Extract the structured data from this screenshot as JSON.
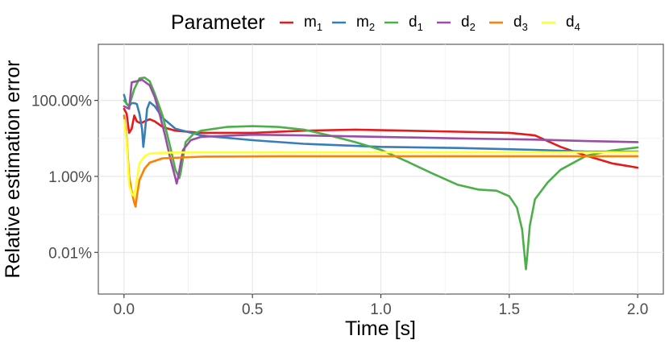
{
  "chart_data": {
    "type": "line",
    "xlabel": "Time [s]",
    "ylabel": "Relative estimation error",
    "yscale": "log10",
    "xlim": [
      -0.1,
      2.1
    ],
    "ylim_percent": [
      0.0008,
      3000
    ],
    "x_ticks": [
      0.0,
      0.5,
      1.0,
      1.5,
      2.0
    ],
    "x_tick_labels": [
      "0.0",
      "0.5",
      "1.0",
      "1.5",
      "2.0"
    ],
    "y_ticks_percent": [
      100,
      1,
      0.01
    ],
    "y_tick_labels": [
      "100.00%",
      "1.00%",
      "0.01%"
    ],
    "grid": true,
    "legend": {
      "title": "Parameter",
      "position": "top",
      "entries": [
        {
          "base": "m",
          "sub": "1"
        },
        {
          "base": "m",
          "sub": "2"
        },
        {
          "base": "d",
          "sub": "1"
        },
        {
          "base": "d",
          "sub": "2"
        },
        {
          "base": "d",
          "sub": "3"
        },
        {
          "base": "d",
          "sub": "4"
        }
      ]
    },
    "series": [
      {
        "name": "m1",
        "color": "#e41a1c",
        "points_percent": [
          [
            0.0,
            60
          ],
          [
            0.01,
            45
          ],
          [
            0.02,
            14
          ],
          [
            0.03,
            18
          ],
          [
            0.04,
            40
          ],
          [
            0.05,
            28
          ],
          [
            0.065,
            25
          ],
          [
            0.08,
            28
          ],
          [
            0.1,
            32
          ],
          [
            0.12,
            28
          ],
          [
            0.15,
            20
          ],
          [
            0.2,
            16
          ],
          [
            0.3,
            14
          ],
          [
            0.5,
            14
          ],
          [
            0.7,
            16
          ],
          [
            0.9,
            17
          ],
          [
            1.1,
            16
          ],
          [
            1.3,
            15
          ],
          [
            1.5,
            14
          ],
          [
            1.6,
            12
          ],
          [
            1.7,
            6
          ],
          [
            1.8,
            3.5
          ],
          [
            1.9,
            2.2
          ],
          [
            2.0,
            1.7
          ]
        ]
      },
      {
        "name": "m2",
        "color": "#377eb8",
        "points_percent": [
          [
            0.0,
            140
          ],
          [
            0.01,
            80
          ],
          [
            0.02,
            70
          ],
          [
            0.03,
            85
          ],
          [
            0.04,
            85
          ],
          [
            0.05,
            80
          ],
          [
            0.06,
            45
          ],
          [
            0.07,
            18
          ],
          [
            0.075,
            6
          ],
          [
            0.08,
            12
          ],
          [
            0.09,
            60
          ],
          [
            0.1,
            90
          ],
          [
            0.12,
            70
          ],
          [
            0.15,
            35
          ],
          [
            0.2,
            18
          ],
          [
            0.3,
            12
          ],
          [
            0.5,
            9
          ],
          [
            0.7,
            7.2
          ],
          [
            1.0,
            6
          ],
          [
            1.3,
            5.6
          ],
          [
            1.6,
            5
          ],
          [
            1.8,
            4.5
          ],
          [
            2.0,
            4.5
          ]
        ]
      },
      {
        "name": "d1",
        "color": "#4daf4a",
        "points_percent": [
          [
            0.0,
            100
          ],
          [
            0.02,
            70
          ],
          [
            0.04,
            200
          ],
          [
            0.06,
            380
          ],
          [
            0.08,
            400
          ],
          [
            0.1,
            320
          ],
          [
            0.12,
            150
          ],
          [
            0.15,
            40
          ],
          [
            0.18,
            6
          ],
          [
            0.2,
            1.5
          ],
          [
            0.215,
            0.9
          ],
          [
            0.22,
            1.2
          ],
          [
            0.24,
            8
          ],
          [
            0.27,
            13
          ],
          [
            0.3,
            16
          ],
          [
            0.4,
            20
          ],
          [
            0.5,
            21
          ],
          [
            0.6,
            20
          ],
          [
            0.7,
            17
          ],
          [
            0.8,
            12
          ],
          [
            0.9,
            8
          ],
          [
            1.0,
            5
          ],
          [
            1.1,
            2.5
          ],
          [
            1.2,
            1.2
          ],
          [
            1.3,
            0.6
          ],
          [
            1.38,
            0.45
          ],
          [
            1.45,
            0.42
          ],
          [
            1.5,
            0.3
          ],
          [
            1.53,
            0.15
          ],
          [
            1.55,
            0.04
          ],
          [
            1.56,
            0.008
          ],
          [
            1.565,
            0.0036
          ],
          [
            1.57,
            0.008
          ],
          [
            1.58,
            0.05
          ],
          [
            1.6,
            0.25
          ],
          [
            1.65,
            0.7
          ],
          [
            1.7,
            1.5
          ],
          [
            1.8,
            3.5
          ],
          [
            1.9,
            4.8
          ],
          [
            2.0,
            5.8
          ]
        ]
      },
      {
        "name": "d2",
        "color": "#984ea3",
        "points_percent": [
          [
            0.0,
            70
          ],
          [
            0.02,
            60
          ],
          [
            0.03,
            300
          ],
          [
            0.05,
            320
          ],
          [
            0.07,
            350
          ],
          [
            0.1,
            250
          ],
          [
            0.12,
            120
          ],
          [
            0.14,
            40
          ],
          [
            0.16,
            12
          ],
          [
            0.18,
            3
          ],
          [
            0.2,
            0.9
          ],
          [
            0.205,
            0.65
          ],
          [
            0.21,
            0.9
          ],
          [
            0.23,
            5
          ],
          [
            0.26,
            9
          ],
          [
            0.3,
            11
          ],
          [
            0.5,
            12.5
          ],
          [
            0.7,
            12
          ],
          [
            1.0,
            11
          ],
          [
            1.3,
            10
          ],
          [
            1.6,
            9.3
          ],
          [
            1.8,
            8.5
          ],
          [
            2.0,
            8
          ]
        ]
      },
      {
        "name": "d3",
        "color": "#ff7f00",
        "points_percent": [
          [
            0.0,
            40
          ],
          [
            0.01,
            10
          ],
          [
            0.02,
            1
          ],
          [
            0.03,
            0.4
          ],
          [
            0.04,
            0.2
          ],
          [
            0.045,
            0.16
          ],
          [
            0.05,
            0.3
          ],
          [
            0.06,
            0.8
          ],
          [
            0.08,
            1.6
          ],
          [
            0.1,
            2.3
          ],
          [
            0.15,
            3
          ],
          [
            0.3,
            3.3
          ],
          [
            0.6,
            3.4
          ],
          [
            1.0,
            3.4
          ],
          [
            1.5,
            3.4
          ],
          [
            2.0,
            3.4
          ]
        ]
      },
      {
        "name": "d4",
        "color": "#ffff33",
        "points_percent": [
          [
            0.0,
            30
          ],
          [
            0.01,
            8
          ],
          [
            0.02,
            0.6
          ],
          [
            0.03,
            0.35
          ],
          [
            0.04,
            0.3
          ],
          [
            0.05,
            0.8
          ],
          [
            0.06,
            2.2
          ],
          [
            0.08,
            3.4
          ],
          [
            0.1,
            4
          ],
          [
            0.15,
            4.2
          ],
          [
            0.3,
            4.3
          ],
          [
            0.6,
            4.3
          ],
          [
            1.0,
            4.3
          ],
          [
            1.5,
            4.3
          ],
          [
            2.0,
            4.3
          ]
        ]
      }
    ]
  }
}
